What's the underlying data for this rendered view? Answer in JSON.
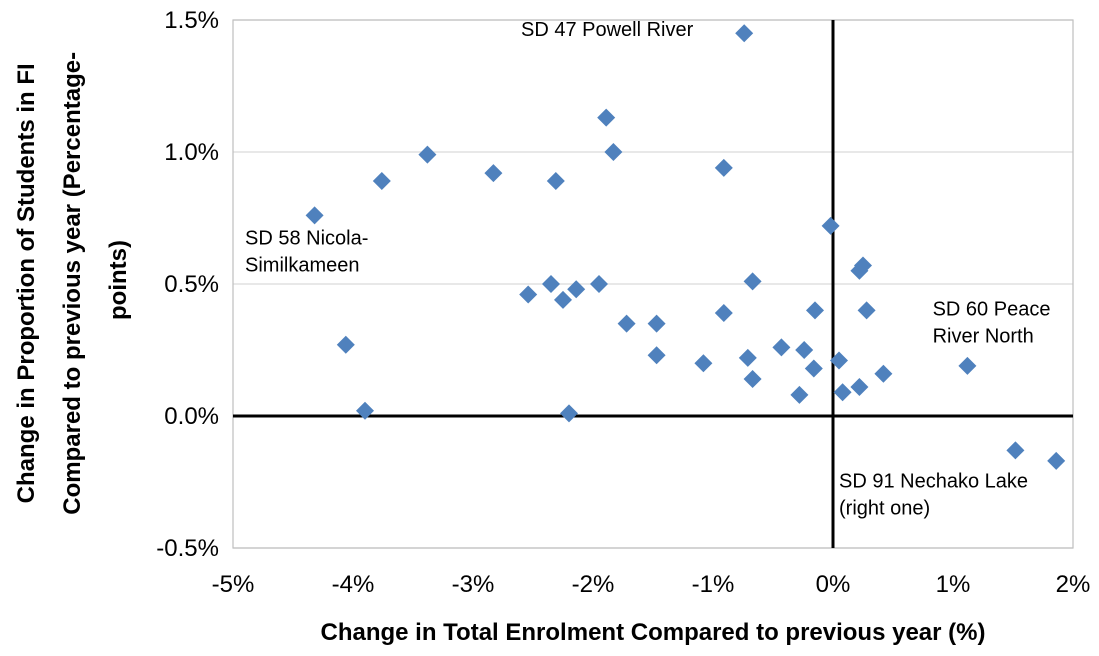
{
  "chart_data": {
    "type": "scatter",
    "title": "",
    "xlabel": "Change in Total Enrolment Compared to previous year (%)",
    "ylabel_lines": [
      "Change in Proportion of Students in FI",
      "Compared to previous year (Percentage-",
      "points)"
    ],
    "xlim": [
      -5,
      2
    ],
    "ylim": [
      -0.5,
      1.5
    ],
    "xticks": [
      -5,
      -4,
      -3,
      -2,
      -1,
      0,
      1,
      2
    ],
    "yticks": [
      -0.5,
      0,
      0.5,
      1.0,
      1.5
    ],
    "xtick_labels": [
      "-5%",
      "-4%",
      "-3%",
      "-2%",
      "-1%",
      "0%",
      "1%",
      "2%"
    ],
    "ytick_labels": [
      "-0.5%",
      "0.0%",
      "0.5%",
      "1.0%",
      "1.5%"
    ],
    "grid": "horizontal",
    "marker_color": "#4f81bd",
    "series": [
      {
        "points": [
          {
            "x": -0.74,
            "y": 1.45
          },
          {
            "x": -4.32,
            "y": 0.76
          },
          {
            "x": -3.76,
            "y": 0.89
          },
          {
            "x": -3.38,
            "y": 0.99
          },
          {
            "x": -2.83,
            "y": 0.92
          },
          {
            "x": -2.31,
            "y": 0.89
          },
          {
            "x": -1.89,
            "y": 1.13
          },
          {
            "x": -1.83,
            "y": 1.0
          },
          {
            "x": -0.91,
            "y": 0.94
          },
          {
            "x": -0.02,
            "y": 0.72
          },
          {
            "x": 0.22,
            "y": 0.55
          },
          {
            "x": 0.25,
            "y": 0.57
          },
          {
            "x": -0.67,
            "y": 0.51
          },
          {
            "x": -1.95,
            "y": 0.5
          },
          {
            "x": -2.35,
            "y": 0.5
          },
          {
            "x": -2.14,
            "y": 0.48
          },
          {
            "x": -2.54,
            "y": 0.46
          },
          {
            "x": -2.25,
            "y": 0.44
          },
          {
            "x": -1.72,
            "y": 0.35
          },
          {
            "x": -1.47,
            "y": 0.35
          },
          {
            "x": -0.91,
            "y": 0.39
          },
          {
            "x": -0.15,
            "y": 0.4
          },
          {
            "x": 0.28,
            "y": 0.4
          },
          {
            "x": -4.06,
            "y": 0.27
          },
          {
            "x": -1.47,
            "y": 0.23
          },
          {
            "x": -1.08,
            "y": 0.2
          },
          {
            "x": -0.71,
            "y": 0.22
          },
          {
            "x": -0.43,
            "y": 0.26
          },
          {
            "x": -0.24,
            "y": 0.25
          },
          {
            "x": 0.05,
            "y": 0.21
          },
          {
            "x": -0.16,
            "y": 0.18
          },
          {
            "x": -0.67,
            "y": 0.14
          },
          {
            "x": 0.42,
            "y": 0.16
          },
          {
            "x": 1.12,
            "y": 0.19
          },
          {
            "x": 0.22,
            "y": 0.11
          },
          {
            "x": -0.28,
            "y": 0.08
          },
          {
            "x": 0.08,
            "y": 0.09
          },
          {
            "x": -3.9,
            "y": 0.02
          },
          {
            "x": -2.2,
            "y": 0.01
          },
          {
            "x": 1.52,
            "y": -0.13
          },
          {
            "x": 1.86,
            "y": -0.17
          }
        ]
      }
    ],
    "annotations": [
      {
        "text": "SD 47 Powell River",
        "lines": [
          "SD 47 Powell River"
        ],
        "x": -2.6,
        "y": 1.44
      },
      {
        "text": "SD 58 Nicola-Similkameen",
        "lines": [
          "SD 58 Nicola-",
          "Similkameen"
        ],
        "x": -4.9,
        "y": 0.65
      },
      {
        "text": "SD 60 Peace River North",
        "lines": [
          "SD 60 Peace",
          "River North"
        ],
        "x": 0.83,
        "y": 0.38
      },
      {
        "text": "SD 91 Nechako Lake (right one)",
        "lines": [
          "SD 91 Nechako Lake",
          "(right one)"
        ],
        "x": 0.05,
        "y": -0.27
      }
    ]
  }
}
